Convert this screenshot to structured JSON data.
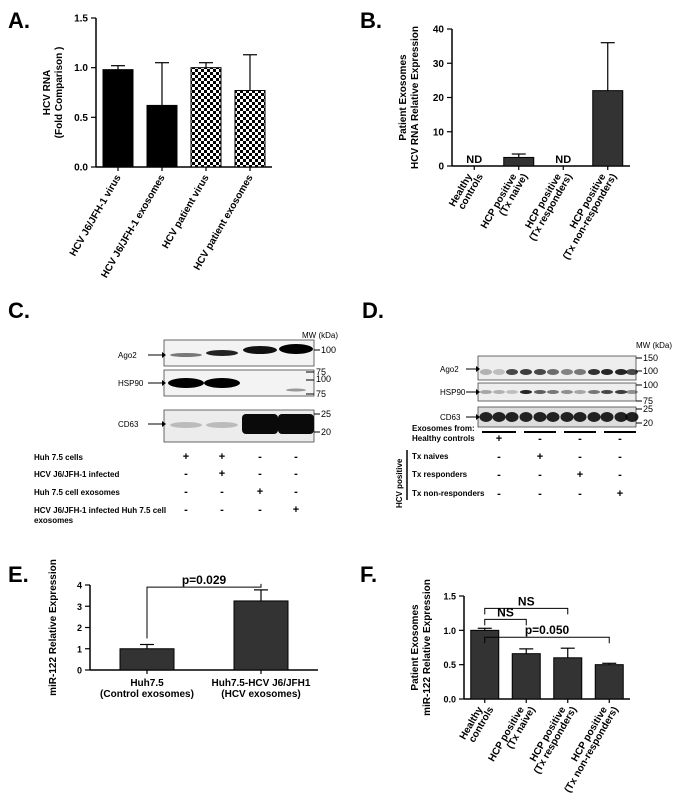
{
  "panel_labels": {
    "A": "A.",
    "B": "B.",
    "C": "C.",
    "D": "D.",
    "E": "E.",
    "F": "F."
  },
  "chart_data": [
    {
      "panel": "A",
      "type": "bar",
      "ylabel_lines": [
        "HCV RNA",
        "(Fold Comparison )"
      ],
      "ylim": [
        0,
        1.5
      ],
      "yticks": [
        "0.0",
        "0.5",
        "1.0",
        "1.5"
      ],
      "categories": [
        "HCV J6/JFH-1 virus",
        "HCV J6/JFH-1 exosomes",
        "HCV patient virus",
        "HCV patient exosomes"
      ],
      "values": [
        0.98,
        0.62,
        1.0,
        0.77
      ],
      "errors": [
        0.04,
        0.43,
        0.05,
        0.36
      ],
      "fills": [
        "solid",
        "solid",
        "checker",
        "checker"
      ]
    },
    {
      "panel": "B",
      "type": "bar",
      "ylabel_lines": [
        "Patient Exosomes",
        "HCV RNA Relative Expression"
      ],
      "ylim": [
        0,
        40
      ],
      "yticks": [
        "0",
        "10",
        "20",
        "30",
        "40"
      ],
      "categories": [
        [
          "Healthy",
          "controls"
        ],
        [
          "HCP positive",
          "(Tx naive)"
        ],
        [
          "HCP positive",
          "(Tx responders)"
        ],
        [
          "HCP positive",
          "(Tx non-responders)"
        ]
      ],
      "values": [
        null,
        2.5,
        null,
        22.0
      ],
      "errors": [
        null,
        1.0,
        null,
        14.0
      ],
      "annotations": [
        "ND",
        null,
        "ND",
        null
      ]
    },
    {
      "panel": "E",
      "type": "bar",
      "ylabel_lines": [
        "miR-122 Relative Expression"
      ],
      "ylim": [
        0,
        4
      ],
      "yticks": [
        "0",
        "1",
        "2",
        "3",
        "4"
      ],
      "categories": [
        [
          "Huh7.5",
          "(Control exosomes)"
        ],
        [
          "Huh7.5-HCV J6/JFH1",
          "(HCV exosomes)"
        ]
      ],
      "values": [
        1.0,
        3.25
      ],
      "errors": [
        0.2,
        0.52
      ],
      "brackets": [
        {
          "from": 0,
          "to": 1,
          "label": "p=0.029"
        }
      ]
    },
    {
      "panel": "F",
      "type": "bar",
      "ylabel_lines": [
        "Patient Exosomes",
        "miR-122 Relative Expression"
      ],
      "ylim": [
        0,
        1.5
      ],
      "yticks": [
        "0.0",
        "0.5",
        "1.0",
        "1.5"
      ],
      "categories": [
        [
          "Healthy",
          "controls"
        ],
        [
          "HCP positive",
          "(Tx naive)"
        ],
        [
          "HCP positive",
          "(Tx responders)"
        ],
        [
          "HCP positive",
          "(Tx non-responders)"
        ]
      ],
      "values": [
        1.0,
        0.66,
        0.6,
        0.5
      ],
      "errors": [
        0.03,
        0.07,
        0.14,
        0.02
      ],
      "brackets": [
        {
          "from": 0,
          "to": 2,
          "label": "NS"
        },
        {
          "from": 0,
          "to": 1,
          "label": "NS"
        },
        {
          "from": 0,
          "to": 3,
          "label": "p=0.050"
        }
      ]
    }
  ],
  "blot_C": {
    "mw_header": "MW (kDa)",
    "rows": [
      {
        "label": "Ago2",
        "markers": [
          "100",
          "75"
        ]
      },
      {
        "label": "HSP90",
        "markers": [
          "100",
          "75"
        ]
      },
      {
        "label": "CD63",
        "markers": [
          "25",
          "20"
        ]
      }
    ],
    "conditions": [
      {
        "label": "Huh 7.5 cells",
        "signs": [
          "+",
          "+",
          "-",
          "-"
        ]
      },
      {
        "label": "HCV J6/JFH-1 infected",
        "signs": [
          "-",
          "+",
          "-",
          "-"
        ]
      },
      {
        "label": "Huh 7.5 cell exosomes",
        "signs": [
          "-",
          "-",
          "+",
          "-"
        ]
      },
      {
        "label": "HCV J6/JFH-1 infected Huh 7.5 cell exosomes",
        "signs": [
          "-",
          "-",
          "-",
          "+"
        ]
      }
    ]
  },
  "blot_D": {
    "mw_header": "MW (kDa)",
    "rows": [
      {
        "label": "Ago2",
        "markers": [
          "150",
          "100"
        ]
      },
      {
        "label": "HSP90",
        "markers": [
          "100",
          "75"
        ]
      },
      {
        "label": "CD63",
        "markers": [
          "25",
          "20"
        ]
      }
    ],
    "exosomes_from": "Exosomes from:",
    "group_label": "HCV positive",
    "conditions": [
      {
        "label": "Healthy controls",
        "signs": [
          "+",
          "-",
          "-",
          "-"
        ]
      },
      {
        "label": "Tx naives",
        "signs": [
          "-",
          "+",
          "-",
          "-"
        ]
      },
      {
        "label": "Tx responders",
        "signs": [
          "-",
          "-",
          "+",
          "-"
        ]
      },
      {
        "label": "Tx non-responders",
        "signs": [
          "-",
          "-",
          "-",
          "+"
        ]
      }
    ]
  }
}
